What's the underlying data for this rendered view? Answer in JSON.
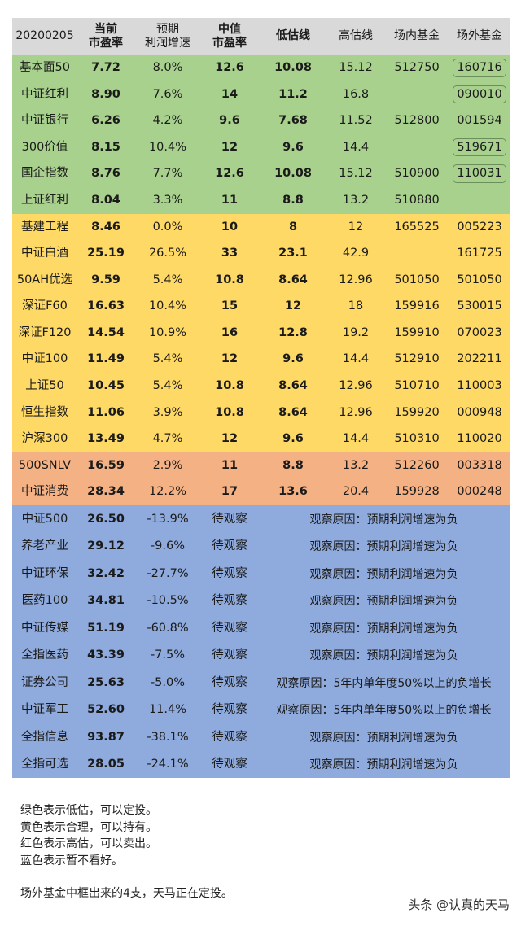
{
  "header": {
    "date": "20200205",
    "col_current_pe": [
      "当前",
      "市盈率"
    ],
    "col_profit_growth": [
      "预期",
      "利润增速"
    ],
    "col_median_pe": [
      "中值",
      "市盈率"
    ],
    "col_low_line": "低估线",
    "col_high_line": "高估线",
    "col_onmarket_fund": "场内基金",
    "col_offmarket_fund": "场外基金"
  },
  "colors": {
    "green": "#a9d18e",
    "yellow": "#ffd966",
    "red": "#f4b183",
    "blue": "#8faadc",
    "header": "#d9d9d9"
  },
  "rows": [
    {
      "name": "基本面50",
      "pe": "7.72",
      "growth": "8.0%",
      "median": "12.6",
      "low": "10.08",
      "high": "15.12",
      "onmarket": "512750",
      "offmarket": "160716",
      "boxed": true,
      "group": "g"
    },
    {
      "name": "中证红利",
      "pe": "8.90",
      "growth": "7.6%",
      "median": "14",
      "low": "11.2",
      "high": "16.8",
      "onmarket": "",
      "offmarket": "090010",
      "boxed": true,
      "group": "g"
    },
    {
      "name": "中证银行",
      "pe": "6.26",
      "growth": "4.2%",
      "median": "9.6",
      "low": "7.68",
      "high": "11.52",
      "onmarket": "512800",
      "offmarket": "001594",
      "boxed": false,
      "group": "g"
    },
    {
      "name": "300价值",
      "pe": "8.15",
      "growth": "10.4%",
      "median": "12",
      "low": "9.6",
      "high": "14.4",
      "onmarket": "",
      "offmarket": "519671",
      "boxed": true,
      "group": "g"
    },
    {
      "name": "国企指数",
      "pe": "8.76",
      "growth": "7.7%",
      "median": "12.6",
      "low": "10.08",
      "high": "15.12",
      "onmarket": "510900",
      "offmarket": "110031",
      "boxed": true,
      "group": "g"
    },
    {
      "name": "上证红利",
      "pe": "8.04",
      "growth": "3.3%",
      "median": "11",
      "low": "8.8",
      "high": "13.2",
      "onmarket": "510880",
      "offmarket": "",
      "boxed": false,
      "group": "g"
    },
    {
      "name": "基建工程",
      "pe": "8.46",
      "growth": "0.0%",
      "median": "10",
      "low": "8",
      "high": "12",
      "onmarket": "165525",
      "offmarket": "005223",
      "boxed": false,
      "group": "y"
    },
    {
      "name": "中证白酒",
      "pe": "25.19",
      "growth": "26.5%",
      "median": "33",
      "low": "23.1",
      "high": "42.9",
      "onmarket": "",
      "offmarket": "161725",
      "boxed": false,
      "group": "y"
    },
    {
      "name": "50AH优选",
      "pe": "9.59",
      "growth": "5.4%",
      "median": "10.8",
      "low": "8.64",
      "high": "12.96",
      "onmarket": "501050",
      "offmarket": "501050",
      "boxed": false,
      "group": "y"
    },
    {
      "name": "深证F60",
      "pe": "16.63",
      "growth": "10.4%",
      "median": "15",
      "low": "12",
      "high": "18",
      "onmarket": "159916",
      "offmarket": "530015",
      "boxed": false,
      "group": "y"
    },
    {
      "name": "深证F120",
      "pe": "14.54",
      "growth": "10.9%",
      "median": "16",
      "low": "12.8",
      "high": "19.2",
      "onmarket": "159910",
      "offmarket": "070023",
      "boxed": false,
      "group": "y"
    },
    {
      "name": "中证100",
      "pe": "11.49",
      "growth": "5.4%",
      "median": "12",
      "low": "9.6",
      "high": "14.4",
      "onmarket": "512910",
      "offmarket": "202211",
      "boxed": false,
      "group": "y"
    },
    {
      "name": "上证50",
      "pe": "10.45",
      "growth": "5.4%",
      "median": "10.8",
      "low": "8.64",
      "high": "12.96",
      "onmarket": "510710",
      "offmarket": "110003",
      "boxed": false,
      "group": "y"
    },
    {
      "name": "恒生指数",
      "pe": "11.06",
      "growth": "3.9%",
      "median": "10.8",
      "low": "8.64",
      "high": "12.96",
      "onmarket": "159920",
      "offmarket": "000948",
      "boxed": false,
      "group": "y"
    },
    {
      "name": "沪深300",
      "pe": "13.49",
      "growth": "4.7%",
      "median": "12",
      "low": "9.6",
      "high": "14.4",
      "onmarket": "510310",
      "offmarket": "110020",
      "boxed": false,
      "group": "y"
    },
    {
      "name": "500SNLV",
      "pe": "16.59",
      "growth": "2.9%",
      "median": "11",
      "low": "8.8",
      "high": "13.2",
      "onmarket": "512260",
      "offmarket": "003318",
      "boxed": false,
      "group": "r"
    },
    {
      "name": "中证消费",
      "pe": "28.34",
      "growth": "12.2%",
      "median": "17",
      "low": "13.6",
      "high": "20.4",
      "onmarket": "159928",
      "offmarket": "000248",
      "boxed": false,
      "group": "r"
    }
  ],
  "watch_rows": [
    {
      "name": "中证500",
      "pe": "26.50",
      "growth": "-13.9%",
      "status": "待观察",
      "note": "观察原因：预期利润增速为负"
    },
    {
      "name": "养老产业",
      "pe": "29.12",
      "growth": "-9.6%",
      "status": "待观察",
      "note": "观察原因：预期利润增速为负"
    },
    {
      "name": "中证环保",
      "pe": "32.42",
      "growth": "-27.7%",
      "status": "待观察",
      "note": "观察原因：预期利润增速为负"
    },
    {
      "name": "医药100",
      "pe": "34.81",
      "growth": "-10.5%",
      "status": "待观察",
      "note": "观察原因：预期利润增速为负"
    },
    {
      "name": "中证传媒",
      "pe": "51.19",
      "growth": "-60.8%",
      "status": "待观察",
      "note": "观察原因：预期利润增速为负"
    },
    {
      "name": "全指医药",
      "pe": "43.39",
      "growth": "-7.5%",
      "status": "待观察",
      "note": "观察原因：预期利润增速为负"
    },
    {
      "name": "证券公司",
      "pe": "25.63",
      "growth": "-5.0%",
      "status": "待观察",
      "note": "观察原因：5年内单年度50%以上的负增长"
    },
    {
      "name": "中证军工",
      "pe": "52.60",
      "growth": "11.4%",
      "status": "待观察",
      "note": "观察原因：5年内单年度50%以上的负增长"
    },
    {
      "name": "全指信息",
      "pe": "93.87",
      "growth": "-38.1%",
      "status": "待观察",
      "note": "观察原因：预期利润增速为负"
    },
    {
      "name": "全指可选",
      "pe": "28.05",
      "growth": "-24.1%",
      "status": "待观察",
      "note": "观察原因：预期利润增速为负"
    }
  ],
  "legend": {
    "green": "绿色表示低估，可以定投。",
    "yellow": "黄色表示合理，可以持有。",
    "red": "红色表示高估，可以卖出。",
    "blue": "蓝色表示暂不看好。",
    "footnote": "场外基金中框出来的4支，天马正在定投。"
  },
  "watermark": "头条 @认真的天马"
}
